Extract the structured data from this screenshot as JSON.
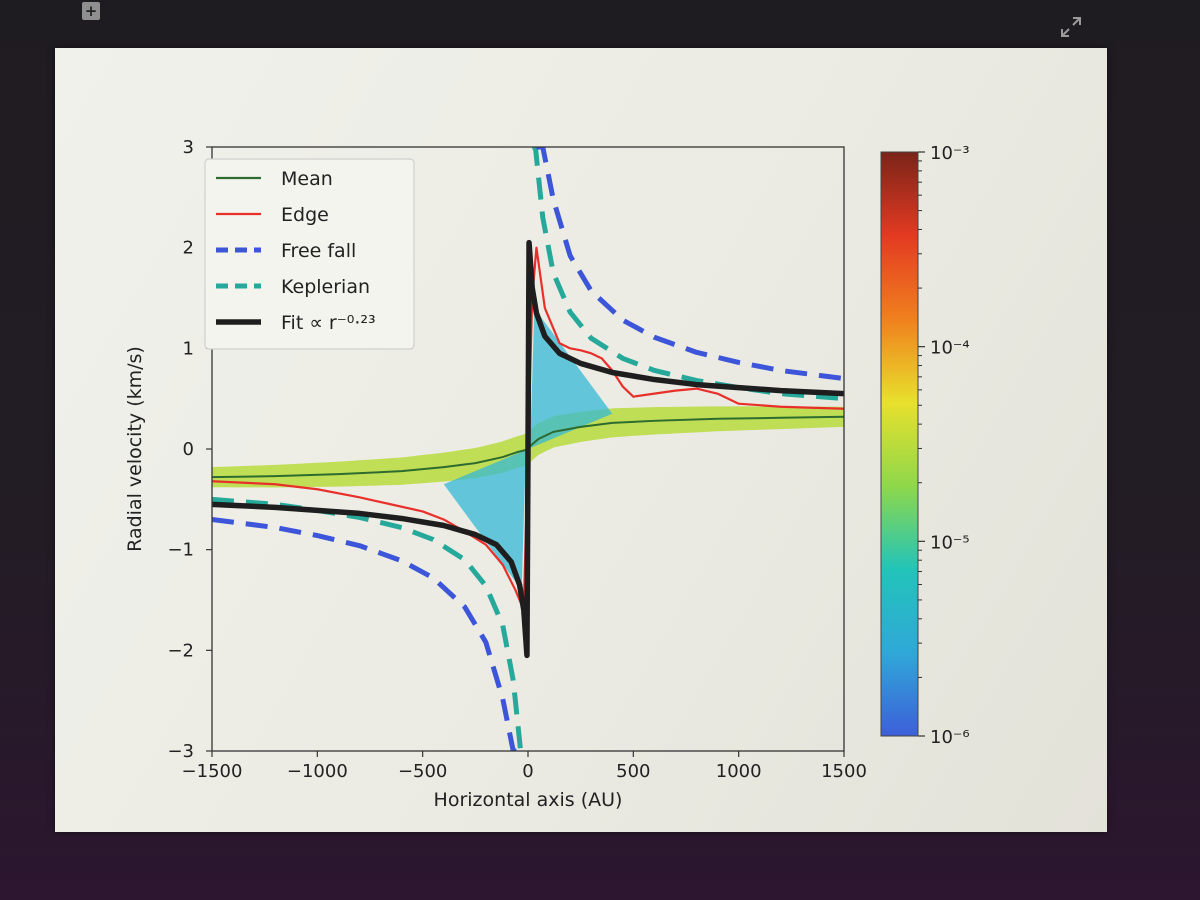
{
  "toolbar": {
    "expand_symbol": "+",
    "fullscreen_icon": "fullscreen-icon"
  },
  "chart_data": {
    "type": "line",
    "title": "",
    "xlabel": "Horizontal axis (AU)",
    "ylabel": "Radial velocity (km/s)",
    "xlim": [
      -1500,
      1500
    ],
    "ylim": [
      -3,
      3
    ],
    "xticks": [
      "−1500",
      "−1000",
      "−500",
      "0",
      "500",
      "1000",
      "1500"
    ],
    "yticks": [
      "−3",
      "−2",
      "−1",
      "0",
      "1",
      "2",
      "3"
    ],
    "legend_position": "top-left",
    "series": [
      {
        "name": "Mean",
        "style": "solid",
        "color": "#2e6b2e",
        "x": [
          -1500,
          -1200,
          -900,
          -600,
          -400,
          -250,
          -120,
          -50,
          -10,
          10,
          50,
          120,
          250,
          400,
          600,
          900,
          1200,
          1500
        ],
        "y": [
          -0.28,
          -0.27,
          -0.25,
          -0.22,
          -0.18,
          -0.14,
          -0.08,
          -0.03,
          -0.01,
          0.03,
          0.1,
          0.17,
          0.22,
          0.26,
          0.28,
          0.3,
          0.31,
          0.32
        ]
      },
      {
        "name": "Edge",
        "style": "solid",
        "color": "#e8302a",
        "x": [
          -1500,
          -1200,
          -1000,
          -800,
          -650,
          -500,
          -400,
          -300,
          -200,
          -120,
          -60,
          -20,
          0,
          20,
          40,
          80,
          150,
          200,
          250,
          300,
          350,
          400,
          450,
          500,
          600,
          700,
          800,
          900,
          1000,
          1200,
          1500
        ],
        "y": [
          -0.32,
          -0.35,
          -0.4,
          -0.48,
          -0.55,
          -0.62,
          -0.7,
          -0.82,
          -0.95,
          -1.15,
          -1.4,
          -1.6,
          0,
          1.5,
          2.0,
          1.4,
          1.05,
          1.0,
          0.98,
          0.95,
          0.9,
          0.78,
          0.62,
          0.52,
          0.55,
          0.58,
          0.6,
          0.55,
          0.45,
          0.42,
          0.4
        ]
      },
      {
        "name": "Free fall",
        "style": "dashed",
        "color": "#3d55d8",
        "x": [
          -1500,
          -1200,
          -1000,
          -800,
          -600,
          -450,
          -300,
          -200,
          -120,
          -70,
          -40,
          40,
          70,
          120,
          200,
          300,
          450,
          600,
          800,
          1000,
          1200,
          1500
        ],
        "y": [
          -0.7,
          -0.78,
          -0.86,
          -0.96,
          -1.11,
          -1.28,
          -1.57,
          -1.92,
          -2.48,
          -3.0,
          -3.0,
          3.0,
          3.0,
          2.48,
          1.92,
          1.57,
          1.28,
          1.11,
          0.96,
          0.86,
          0.78,
          0.7
        ]
      },
      {
        "name": "Keplerian",
        "style": "dashed",
        "color": "#26a99b",
        "x": [
          -1500,
          -1200,
          -1000,
          -800,
          -600,
          -450,
          -300,
          -200,
          -120,
          -70,
          -35,
          -20,
          20,
          35,
          70,
          120,
          200,
          300,
          450,
          600,
          800,
          1000,
          1200,
          1500
        ],
        "y": [
          -0.5,
          -0.55,
          -0.61,
          -0.68,
          -0.78,
          -0.9,
          -1.1,
          -1.36,
          -1.75,
          -2.3,
          -3.0,
          -3.0,
          3.0,
          3.0,
          2.3,
          1.75,
          1.36,
          1.1,
          0.9,
          0.78,
          0.68,
          0.61,
          0.55,
          0.5
        ]
      },
      {
        "name": "Fit  ∝ r⁻⁰·²³",
        "style": "thick",
        "color": "#1e1e1e",
        "x": [
          -1500,
          -1200,
          -1000,
          -800,
          -600,
          -400,
          -250,
          -150,
          -80,
          -40,
          -20,
          -5,
          5,
          20,
          40,
          80,
          150,
          250,
          400,
          600,
          800,
          1000,
          1200,
          1500
        ],
        "y": [
          -0.55,
          -0.58,
          -0.61,
          -0.64,
          -0.69,
          -0.76,
          -0.85,
          -0.95,
          -1.12,
          -1.35,
          -1.6,
          -2.05,
          2.05,
          1.6,
          1.35,
          1.12,
          0.95,
          0.85,
          0.76,
          0.69,
          0.64,
          0.61,
          0.58,
          0.55
        ]
      }
    ],
    "legend": [
      "Mean",
      "Edge",
      "Free fall",
      "Keplerian",
      "Fit  ∝ r⁻⁰·²³"
    ],
    "colorbar": {
      "scale": "log",
      "range": [
        1e-06,
        0.001
      ],
      "tick_labels": [
        "10⁻³",
        "10⁻⁴",
        "10⁻⁵",
        "10⁻⁶"
      ],
      "colormap": [
        "#3d5fd9",
        "#2fa8d8",
        "#22c4b9",
        "#8fd84a",
        "#e8e02c",
        "#f0801e",
        "#e33a22",
        "#7a2418"
      ]
    }
  }
}
